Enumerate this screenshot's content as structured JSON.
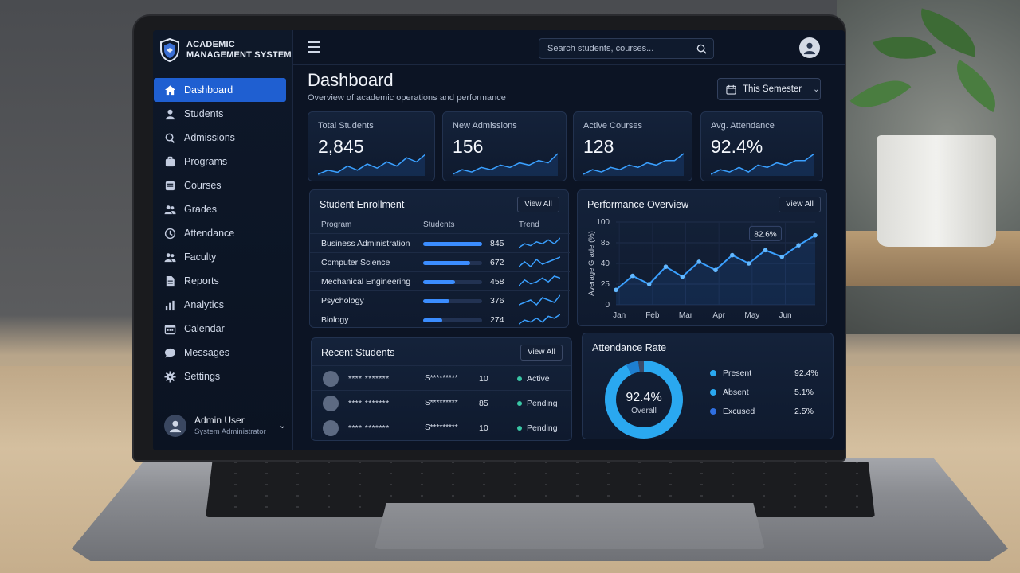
{
  "app": {
    "name_line1": "ACADEMIC",
    "name_line2": "MANAGEMENT SYSTEM"
  },
  "sidebar": {
    "items": [
      {
        "label": "Dashboard",
        "icon": "home-icon",
        "active": true
      },
      {
        "label": "Students",
        "icon": "user-icon"
      },
      {
        "label": "Admissions",
        "icon": "search-icon"
      },
      {
        "label": "Programs",
        "icon": "briefcase-icon"
      },
      {
        "label": "Courses",
        "icon": "book-icon"
      },
      {
        "label": "Grades",
        "icon": "users-icon"
      },
      {
        "label": "Attendance",
        "icon": "clock-icon"
      },
      {
        "label": "Faculty",
        "icon": "users-icon"
      },
      {
        "label": "Reports",
        "icon": "document-icon"
      },
      {
        "label": "Analytics",
        "icon": "bar-chart-icon"
      },
      {
        "label": "Calendar",
        "icon": "calendar-icon"
      },
      {
        "label": "Messages",
        "icon": "chat-icon"
      },
      {
        "label": "Settings",
        "icon": "gear-icon"
      }
    ],
    "user": {
      "name": "Admin User",
      "role": "System Administrator"
    }
  },
  "header": {
    "search_placeholder": "Search students, courses..."
  },
  "page": {
    "title": "Dashboard",
    "subtitle": "Overview of academic operations and performance",
    "period": "This Semester"
  },
  "stats": [
    {
      "label": "Total Students",
      "value": "2,845",
      "trend": [
        3,
        5,
        4,
        7,
        5,
        8,
        6,
        9,
        7,
        11,
        9,
        13
      ]
    },
    {
      "label": "New Admissions",
      "value": "156",
      "trend": [
        4,
        6,
        5,
        7,
        6,
        8,
        7,
        9,
        8,
        10,
        9,
        13
      ]
    },
    {
      "label": "Active Courses",
      "value": "128",
      "trend": [
        3,
        5,
        4,
        6,
        5,
        7,
        6,
        8,
        7,
        9,
        9,
        12
      ]
    },
    {
      "label": "Avg. Attendance",
      "value": "92.4%",
      "trend": [
        4,
        6,
        5,
        7,
        5,
        8,
        7,
        9,
        8,
        10,
        10,
        13
      ]
    }
  ],
  "enrollment": {
    "title": "Student Enrollment",
    "view_all": "View All",
    "headers": {
      "program": "Program",
      "students": "Students",
      "trend": "Trend"
    },
    "max": 845,
    "rows": [
      {
        "program": "Business Administration",
        "students": 845
      },
      {
        "program": "Computer Science",
        "students": 672
      },
      {
        "program": "Mechanical Engineering",
        "students": 458
      },
      {
        "program": "Psychology",
        "students": 376
      },
      {
        "program": "Biology",
        "students": 274
      }
    ]
  },
  "chart_data": {
    "type": "line",
    "title": "Performance Overview",
    "ylabel": "Average Grade (%)",
    "xlabel": "",
    "categories": [
      "Jan",
      "Feb",
      "Mar",
      "Apr",
      "May",
      "Jun"
    ],
    "x": [
      0,
      0.5,
      1,
      1.5,
      2,
      2.5,
      3,
      3.5,
      4,
      4.5,
      5,
      5.5,
      6
    ],
    "values": [
      18,
      35,
      25,
      46,
      34,
      52,
      42,
      60,
      50,
      66,
      58,
      72,
      84
    ],
    "yticks": [
      0,
      25,
      40,
      85,
      100
    ],
    "ylim": [
      0,
      100
    ],
    "annotation": "82.6%",
    "grid": true,
    "view_all": "View All"
  },
  "recent_students": {
    "title": "Recent Students",
    "view_all": "View All",
    "rows": [
      {
        "name": "**** *******",
        "id": "S*********",
        "num": "10",
        "status": "Active",
        "status_color": "#39c6a5"
      },
      {
        "name": "**** *******",
        "id": "S*********",
        "num": "85",
        "status": "Pending",
        "status_color": "#39c6a5"
      },
      {
        "name": "**** *******",
        "id": "S*********",
        "num": "10",
        "status": "Pending",
        "status_color": "#39c6a5"
      }
    ]
  },
  "attendance": {
    "title": "Attendance Rate",
    "center_value": "92.4%",
    "center_label": "Overall",
    "items": [
      {
        "label": "Present",
        "value": "92.4%",
        "color": "#2aa8f0"
      },
      {
        "label": "Absent",
        "value": "5.1%",
        "color": "#2aa8f0"
      },
      {
        "label": "Excused",
        "value": "2.5%",
        "color": "#2f6fe0"
      }
    ]
  }
}
